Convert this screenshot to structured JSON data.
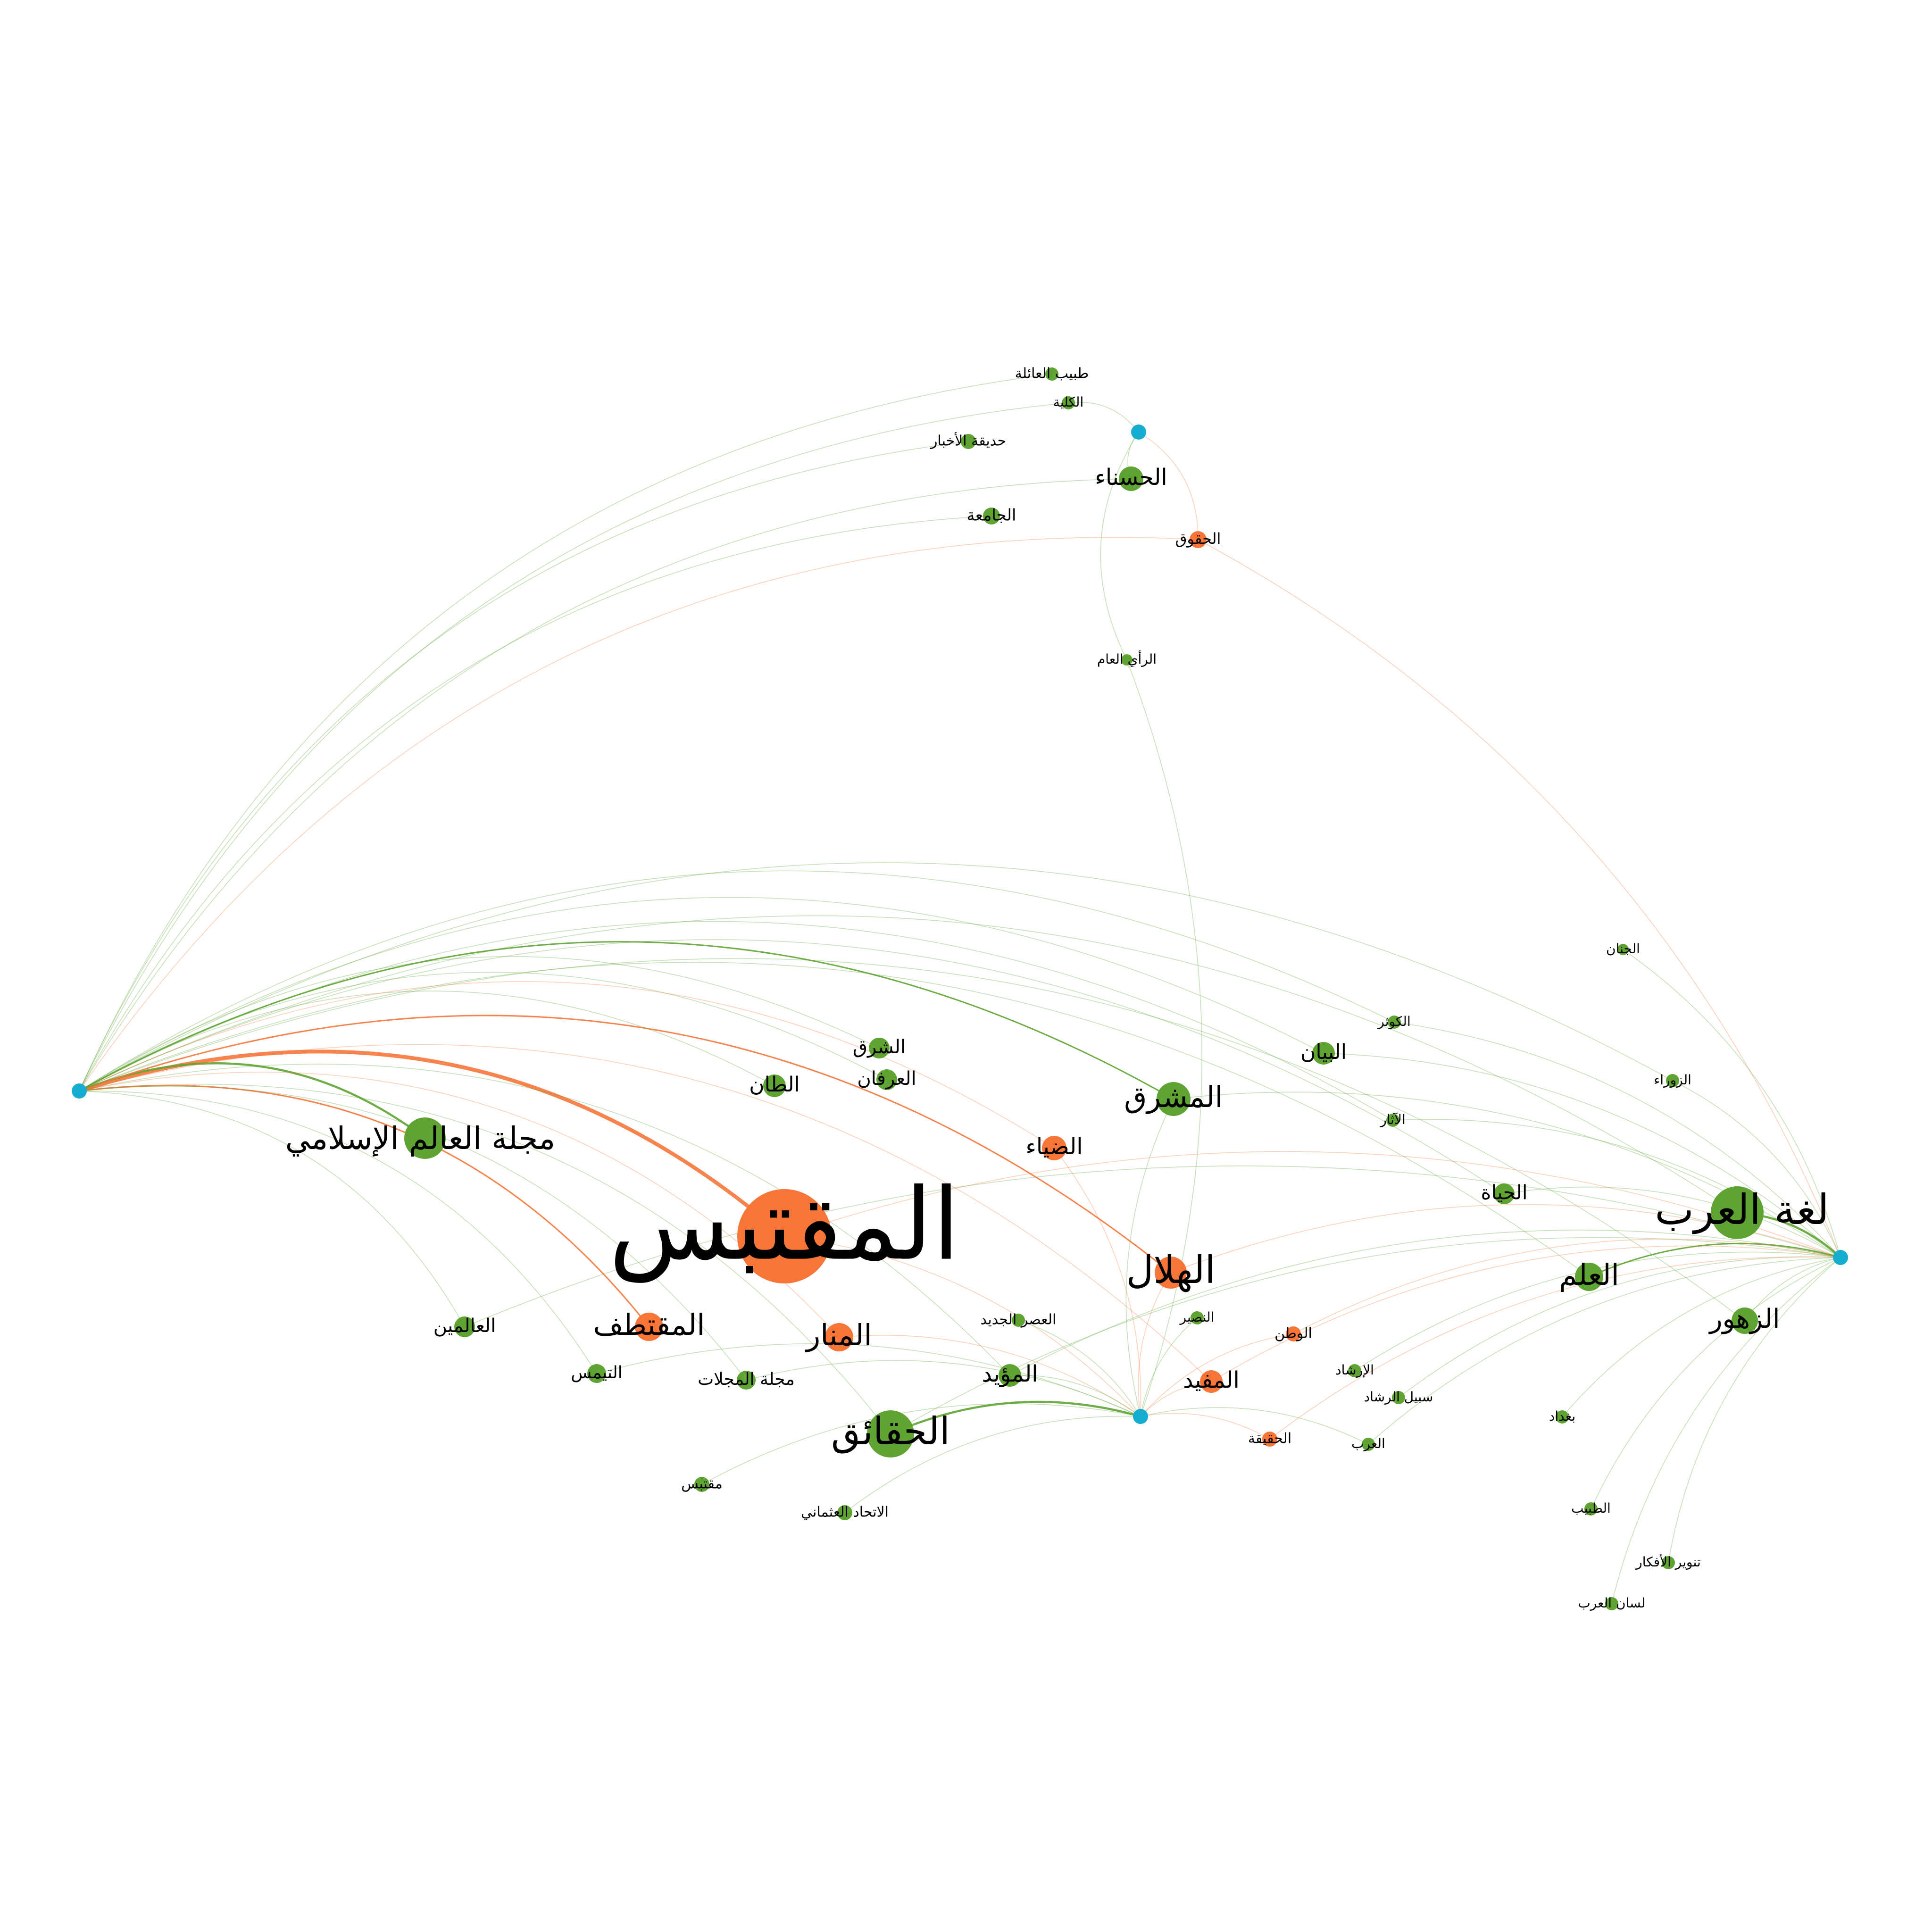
{
  "colors": {
    "background": "#ffffff",
    "hub": "#16aed0",
    "green": "#5fa433",
    "orange": "#f87538"
  },
  "hubs": [
    {
      "id": "hub-left"
    },
    {
      "id": "hub-top"
    },
    {
      "id": "hub-bottom"
    },
    {
      "id": "hub-right"
    }
  ],
  "nodes": [
    {
      "id": "n01",
      "label": "المقتبس",
      "color": "orange"
    },
    {
      "id": "n02",
      "label": "مجلة العالم الإسلامي",
      "color": "green"
    },
    {
      "id": "n03",
      "label": "الحقائق",
      "color": "green"
    },
    {
      "id": "n04",
      "label": "الهلال",
      "color": "orange"
    },
    {
      "id": "n05",
      "label": "لغة العرب",
      "color": "green"
    },
    {
      "id": "n06",
      "label": "المشرق",
      "color": "green"
    },
    {
      "id": "n07",
      "label": "المنار",
      "color": "orange"
    },
    {
      "id": "n08",
      "label": "المقتطف",
      "color": "orange"
    },
    {
      "id": "n09",
      "label": "العلم",
      "color": "green"
    },
    {
      "id": "n10",
      "label": "الزهور",
      "color": "green"
    },
    {
      "id": "n11",
      "label": "الضياء",
      "color": "orange"
    },
    {
      "id": "n12",
      "label": "الحسناء",
      "color": "green"
    },
    {
      "id": "n13",
      "label": "المؤيد",
      "color": "green"
    },
    {
      "id": "n14",
      "label": "المفيد",
      "color": "orange"
    },
    {
      "id": "n15",
      "label": "البيان",
      "color": "green"
    },
    {
      "id": "n16",
      "label": "الحياة",
      "color": "green"
    },
    {
      "id": "n17",
      "label": "الطان",
      "color": "green"
    },
    {
      "id": "n18",
      "label": "الشرق",
      "color": "green"
    },
    {
      "id": "n19",
      "label": "العرفان",
      "color": "green"
    },
    {
      "id": "n20",
      "label": "العالمين",
      "color": "green"
    },
    {
      "id": "n21",
      "label": "التيمس",
      "color": "green"
    },
    {
      "id": "n22",
      "label": "مجلة المجلات",
      "color": "green"
    },
    {
      "id": "n23",
      "label": "العصر الجديد",
      "color": "green"
    },
    {
      "id": "n24",
      "label": "النصير",
      "color": "green"
    },
    {
      "id": "n25",
      "label": "الوطن",
      "color": "orange"
    },
    {
      "id": "n26",
      "label": "الإرشاد",
      "color": "green"
    },
    {
      "id": "n27",
      "label": "سبيل الرشاد",
      "color": "green"
    },
    {
      "id": "n28",
      "label": "الحقيقة",
      "color": "orange"
    },
    {
      "id": "n29",
      "label": "العرب",
      "color": "green"
    },
    {
      "id": "n30",
      "label": "بغداد",
      "color": "green"
    },
    {
      "id": "n31",
      "label": "الطبيب",
      "color": "green"
    },
    {
      "id": "n32",
      "label": "تنوير الأفكار",
      "color": "green"
    },
    {
      "id": "n33",
      "label": "لسان العرب",
      "color": "green"
    },
    {
      "id": "n34",
      "label": "مقتبس",
      "color": "green"
    },
    {
      "id": "n35",
      "label": "الاتحاد العثماني",
      "color": "green"
    },
    {
      "id": "n36",
      "label": "الآثار",
      "color": "green"
    },
    {
      "id": "n37",
      "label": "الكوثر",
      "color": "green"
    },
    {
      "id": "n38",
      "label": "الزوراء",
      "color": "green"
    },
    {
      "id": "n39",
      "label": "الجنان",
      "color": "green"
    },
    {
      "id": "n40",
      "label": "طبيب العائلة",
      "color": "green"
    },
    {
      "id": "n41",
      "label": "الكلية",
      "color": "green"
    },
    {
      "id": "n42",
      "label": "حديقة الأخبار",
      "color": "green"
    },
    {
      "id": "n43",
      "label": "الجامعة",
      "color": "green"
    },
    {
      "id": "n44",
      "label": "الحقوق",
      "color": "orange"
    },
    {
      "id": "n45",
      "label": "الرأي العام",
      "color": "green"
    }
  ],
  "edges": [
    {
      "from": "hub-left",
      "to": "n01",
      "color": "orange",
      "weight": 5
    },
    {
      "from": "hub-left",
      "to": "n02",
      "color": "green",
      "weight": 3
    },
    {
      "from": "hub-left",
      "to": "n04",
      "color": "orange",
      "weight": 2
    },
    {
      "from": "hub-left",
      "to": "n06",
      "color": "green",
      "weight": 2
    },
    {
      "from": "hub-left",
      "to": "n08",
      "color": "orange",
      "weight": 2
    },
    {
      "from": "hub-left",
      "to": "n07",
      "color": "orange",
      "weight": 1
    },
    {
      "from": "hub-left",
      "to": "n20",
      "color": "green",
      "weight": 1
    },
    {
      "from": "hub-left",
      "to": "n21",
      "color": "green",
      "weight": 1
    },
    {
      "from": "hub-left",
      "to": "n22",
      "color": "green",
      "weight": 1
    },
    {
      "from": "hub-left",
      "to": "n12",
      "color": "green",
      "weight": 1
    },
    {
      "from": "hub-left",
      "to": "n43",
      "color": "green",
      "weight": 1
    },
    {
      "from": "hub-left",
      "to": "n42",
      "color": "green",
      "weight": 1
    },
    {
      "from": "hub-left",
      "to": "n41",
      "color": "green",
      "weight": 1
    },
    {
      "from": "hub-left",
      "to": "n40",
      "color": "green",
      "weight": 1
    },
    {
      "from": "hub-left",
      "to": "n44",
      "color": "orange",
      "weight": 1
    },
    {
      "from": "hub-left",
      "to": "n15",
      "color": "green",
      "weight": 1
    },
    {
      "from": "hub-left",
      "to": "n16",
      "color": "green",
      "weight": 1
    },
    {
      "from": "hub-left",
      "to": "n36",
      "color": "green",
      "weight": 1
    },
    {
      "from": "hub-left",
      "to": "n05",
      "color": "green",
      "weight": 1
    },
    {
      "from": "hub-left",
      "to": "n09",
      "color": "green",
      "weight": 1
    },
    {
      "from": "hub-left",
      "to": "n10",
      "color": "green",
      "weight": 1
    },
    {
      "from": "hub-left",
      "to": "n17",
      "color": "green",
      "weight": 1
    },
    {
      "from": "hub-left",
      "to": "n18",
      "color": "green",
      "weight": 1
    },
    {
      "from": "hub-left",
      "to": "n19",
      "color": "green",
      "weight": 1
    },
    {
      "from": "hub-left",
      "to": "n11",
      "color": "orange",
      "weight": 1
    },
    {
      "from": "hub-left",
      "to": "n13",
      "color": "green",
      "weight": 1
    },
    {
      "from": "hub-left",
      "to": "n14",
      "color": "orange",
      "weight": 1
    },
    {
      "from": "hub-left",
      "to": "n03",
      "color": "green",
      "weight": 1
    },
    {
      "from": "hub-left",
      "to": "n37",
      "color": "green",
      "weight": 1
    },
    {
      "from": "hub-left",
      "to": "n38",
      "color": "green",
      "weight": 1
    },
    {
      "from": "hub-top",
      "to": "n12",
      "color": "green",
      "weight": 1
    },
    {
      "from": "hub-top",
      "to": "n41",
      "color": "green",
      "weight": 1
    },
    {
      "from": "hub-top",
      "to": "n44",
      "color": "orange",
      "weight": 1
    },
    {
      "from": "hub-top",
      "to": "n45",
      "color": "green",
      "weight": 1
    },
    {
      "from": "hub-bottom",
      "to": "n03",
      "color": "green",
      "weight": 3
    },
    {
      "from": "hub-bottom",
      "to": "n01",
      "color": "orange",
      "weight": 1
    },
    {
      "from": "hub-bottom",
      "to": "n04",
      "color": "orange",
      "weight": 1
    },
    {
      "from": "hub-bottom",
      "to": "n07",
      "color": "orange",
      "weight": 1
    },
    {
      "from": "hub-bottom",
      "to": "n11",
      "color": "orange",
      "weight": 1
    },
    {
      "from": "hub-bottom",
      "to": "n13",
      "color": "green",
      "weight": 1
    },
    {
      "from": "hub-bottom",
      "to": "n14",
      "color": "orange",
      "weight": 1
    },
    {
      "from": "hub-bottom",
      "to": "n23",
      "color": "green",
      "weight": 1
    },
    {
      "from": "hub-bottom",
      "to": "n24",
      "color": "green",
      "weight": 1
    },
    {
      "from": "hub-bottom",
      "to": "n25",
      "color": "orange",
      "weight": 1
    },
    {
      "from": "hub-bottom",
      "to": "n28",
      "color": "orange",
      "weight": 1
    },
    {
      "from": "hub-bottom",
      "to": "n29",
      "color": "green",
      "weight": 1
    },
    {
      "from": "hub-bottom",
      "to": "n34",
      "color": "green",
      "weight": 1
    },
    {
      "from": "hub-bottom",
      "to": "n35",
      "color": "green",
      "weight": 1
    },
    {
      "from": "hub-bottom",
      "to": "n22",
      "color": "green",
      "weight": 1
    },
    {
      "from": "hub-bottom",
      "to": "n21",
      "color": "green",
      "weight": 1
    },
    {
      "from": "hub-bottom",
      "to": "n45",
      "color": "green",
      "weight": 1
    },
    {
      "from": "hub-bottom",
      "to": "n06",
      "color": "green",
      "weight": 1
    },
    {
      "from": "hub-right",
      "to": "n05",
      "color": "green",
      "weight": 3
    },
    {
      "from": "hub-right",
      "to": "n09",
      "color": "green",
      "weight": 2
    },
    {
      "from": "hub-right",
      "to": "n10",
      "color": "green",
      "weight": 1
    },
    {
      "from": "hub-right",
      "to": "n16",
      "color": "green",
      "weight": 1
    },
    {
      "from": "hub-right",
      "to": "n15",
      "color": "green",
      "weight": 1
    },
    {
      "from": "hub-right",
      "to": "n06",
      "color": "green",
      "weight": 1
    },
    {
      "from": "hub-right",
      "to": "n04",
      "color": "orange",
      "weight": 1
    },
    {
      "from": "hub-right",
      "to": "n14",
      "color": "orange",
      "weight": 1
    },
    {
      "from": "hub-right",
      "to": "n25",
      "color": "orange",
      "weight": 1
    },
    {
      "from": "hub-right",
      "to": "n26",
      "color": "green",
      "weight": 1
    },
    {
      "from": "hub-right",
      "to": "n27",
      "color": "green",
      "weight": 1
    },
    {
      "from": "hub-right",
      "to": "n28",
      "color": "orange",
      "weight": 1
    },
    {
      "from": "hub-right",
      "to": "n29",
      "color": "green",
      "weight": 1
    },
    {
      "from": "hub-right",
      "to": "n30",
      "color": "green",
      "weight": 1
    },
    {
      "from": "hub-right",
      "to": "n31",
      "color": "green",
      "weight": 1
    },
    {
      "from": "hub-right",
      "to": "n32",
      "color": "green",
      "weight": 1
    },
    {
      "from": "hub-right",
      "to": "n33",
      "color": "green",
      "weight": 1
    },
    {
      "from": "hub-right",
      "to": "n36",
      "color": "green",
      "weight": 1
    },
    {
      "from": "hub-right",
      "to": "n37",
      "color": "green",
      "weight": 1
    },
    {
      "from": "hub-right",
      "to": "n38",
      "color": "green",
      "weight": 1
    },
    {
      "from": "hub-right",
      "to": "n39",
      "color": "green",
      "weight": 1
    },
    {
      "from": "hub-right",
      "to": "n44",
      "color": "orange",
      "weight": 1
    },
    {
      "from": "hub-right",
      "to": "n01",
      "color": "orange",
      "weight": 1
    },
    {
      "from": "hub-right",
      "to": "n03",
      "color": "green",
      "weight": 1
    },
    {
      "from": "hub-right",
      "to": "n13",
      "color": "green",
      "weight": 1
    },
    {
      "from": "hub-right",
      "to": "n20",
      "color": "green",
      "weight": 1
    }
  ]
}
